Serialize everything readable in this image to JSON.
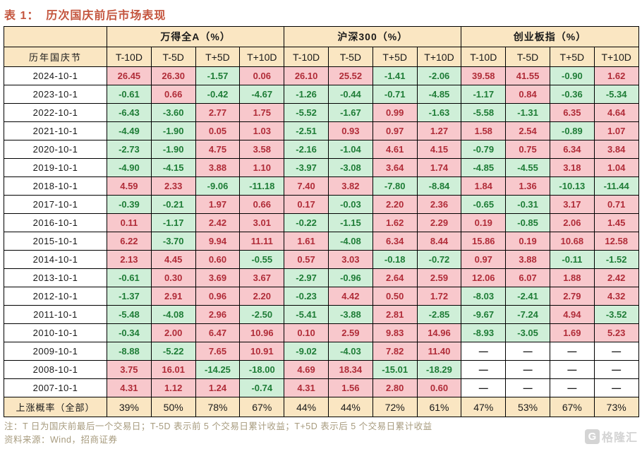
{
  "title": {
    "prefix": "表 1：",
    "text": "历次国庆前后市场表现"
  },
  "table": {
    "row_header": "历年国庆节",
    "groups": [
      {
        "label": "万得全A（%）"
      },
      {
        "label": "沪深300（%）"
      },
      {
        "label": "创业板指（%）"
      }
    ],
    "period_headers": [
      "T-10D",
      "T-5D",
      "T+5D",
      "T+10D"
    ],
    "null_display": "—",
    "rows": [
      {
        "date": "2024-10-1",
        "values": [
          "26.45",
          "26.30",
          "-1.57",
          "0.06",
          "26.10",
          "25.52",
          "-1.41",
          "-2.06",
          "39.58",
          "41.55",
          "-0.90",
          "1.62"
        ]
      },
      {
        "date": "2023-10-1",
        "values": [
          "-0.61",
          "0.66",
          "-0.42",
          "-4.67",
          "-1.26",
          "-0.44",
          "-0.71",
          "-4.85",
          "-1.17",
          "0.84",
          "-0.36",
          "-5.34"
        ]
      },
      {
        "date": "2022-10-1",
        "values": [
          "-6.43",
          "-3.60",
          "2.77",
          "1.75",
          "-5.52",
          "-1.67",
          "0.99",
          "-1.63",
          "-5.58",
          "-1.31",
          "6.35",
          "4.64"
        ]
      },
      {
        "date": "2021-10-1",
        "values": [
          "-4.49",
          "-1.90",
          "0.05",
          "1.03",
          "-2.51",
          "0.93",
          "0.97",
          "1.27",
          "1.58",
          "2.54",
          "-0.89",
          "1.07"
        ]
      },
      {
        "date": "2020-10-1",
        "values": [
          "-2.73",
          "-1.90",
          "4.75",
          "3.58",
          "-2.16",
          "-1.04",
          "4.61",
          "4.15",
          "-0.79",
          "0.75",
          "6.34",
          "3.84"
        ]
      },
      {
        "date": "2019-10-1",
        "values": [
          "-4.90",
          "-4.15",
          "3.88",
          "1.10",
          "-3.97",
          "-3.08",
          "3.64",
          "1.74",
          "-4.85",
          "-4.55",
          "3.18",
          "1.04"
        ]
      },
      {
        "date": "2018-10-1",
        "values": [
          "4.59",
          "2.33",
          "-9.06",
          "-11.18",
          "7.40",
          "3.82",
          "-7.80",
          "-8.84",
          "1.84",
          "1.36",
          "-10.13",
          "-11.44"
        ]
      },
      {
        "date": "2017-10-1",
        "values": [
          "-0.39",
          "-0.21",
          "1.97",
          "0.66",
          "0.17",
          "-0.03",
          "2.20",
          "2.36",
          "-0.65",
          "-0.31",
          "3.17",
          "0.71"
        ]
      },
      {
        "date": "2016-10-1",
        "values": [
          "0.11",
          "-1.17",
          "2.42",
          "3.01",
          "-0.22",
          "-1.15",
          "1.62",
          "2.29",
          "0.19",
          "-0.85",
          "2.06",
          "1.45"
        ]
      },
      {
        "date": "2015-10-1",
        "values": [
          "6.22",
          "-3.70",
          "9.94",
          "11.11",
          "1.61",
          "-4.08",
          "6.34",
          "8.44",
          "15.86",
          "0.19",
          "10.68",
          "12.58"
        ]
      },
      {
        "date": "2014-10-1",
        "values": [
          "2.13",
          "4.45",
          "0.60",
          "-0.55",
          "0.57",
          "3.03",
          "-0.18",
          "-0.72",
          "0.97",
          "3.88",
          "-0.11",
          "-1.52"
        ]
      },
      {
        "date": "2013-10-1",
        "values": [
          "-0.61",
          "0.30",
          "3.69",
          "3.67",
          "-2.97",
          "-0.96",
          "2.64",
          "2.59",
          "12.06",
          "6.07",
          "1.88",
          "2.42"
        ]
      },
      {
        "date": "2012-10-1",
        "values": [
          "-1.37",
          "2.91",
          "0.96",
          "2.20",
          "-0.23",
          "4.42",
          "0.50",
          "1.72",
          "-8.03",
          "-2.41",
          "2.79",
          "4.32"
        ]
      },
      {
        "date": "2011-10-1",
        "values": [
          "-5.48",
          "-4.08",
          "2.96",
          "-2.50",
          "-5.41",
          "-3.88",
          "2.81",
          "-2.85",
          "-9.67",
          "-7.24",
          "4.94",
          "-3.52"
        ]
      },
      {
        "date": "2010-10-1",
        "values": [
          "-0.34",
          "2.00",
          "6.47",
          "10.96",
          "0.10",
          "2.59",
          "9.83",
          "14.96",
          "-8.93",
          "-3.05",
          "1.69",
          "5.23"
        ]
      },
      {
        "date": "2009-10-1",
        "values": [
          "-8.88",
          "-5.22",
          "7.65",
          "10.91",
          "-9.02",
          "-4.03",
          "7.82",
          "11.40",
          null,
          null,
          null,
          null
        ]
      },
      {
        "date": "2008-10-1",
        "values": [
          "3.75",
          "16.01",
          "-14.25",
          "-18.00",
          "4.69",
          "18.34",
          "-15.01",
          "-18.29",
          null,
          null,
          null,
          null
        ]
      },
      {
        "date": "2007-10-1",
        "values": [
          "4.31",
          "1.12",
          "1.24",
          "-0.74",
          "4.31",
          "1.56",
          "2.80",
          "0.60",
          null,
          null,
          null,
          null
        ]
      }
    ],
    "probability_row": {
      "label": "上涨概率（全部）",
      "values": [
        "39%",
        "50%",
        "78%",
        "67%",
        "44%",
        "44%",
        "72%",
        "61%",
        "47%",
        "53%",
        "67%",
        "73%"
      ]
    }
  },
  "notes": {
    "line1": "注：T 日为国庆前最后一个交易日；T-5D 表示前 5 个交易日累计收益；T+5D 表示后 5 个交易日累计收益",
    "line2": "资料来源：Wind，招商证券"
  },
  "watermark": {
    "logo_letter": "G",
    "text": "格隆汇"
  },
  "colors": {
    "positive_bg": "#F8C8CC",
    "positive_text": "#B02C38",
    "negative_bg": "#CFEFD8",
    "negative_text": "#1E7C36",
    "header_bg": "#FAE6C2",
    "title_color": "#C4553E",
    "border": "#000000",
    "note_color": "#A79B7E"
  }
}
